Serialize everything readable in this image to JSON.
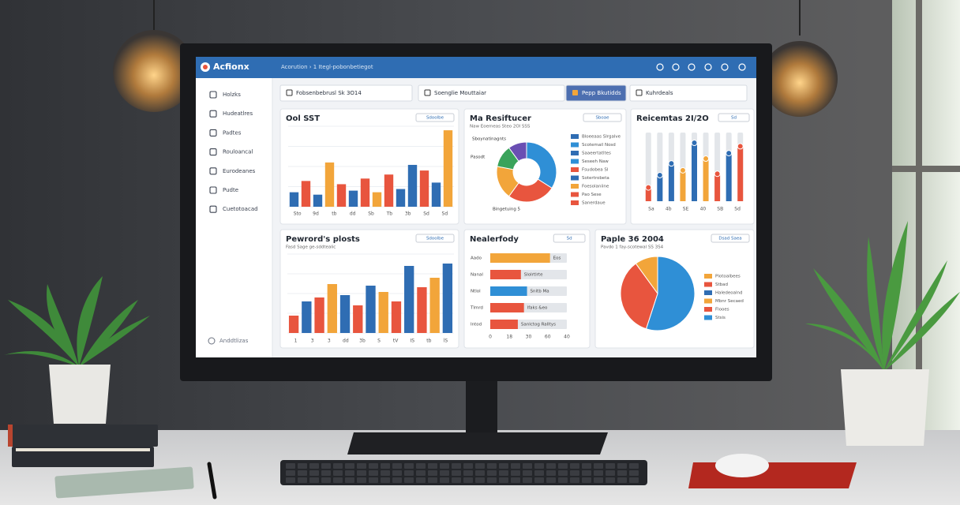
{
  "topbar": {
    "logo": "Acfionx",
    "breadcrumb": "Acorution › 1 Itegl-pobonbetiegot"
  },
  "sidebar": {
    "items": [
      "Holzks",
      "Hudeatlres",
      "Padtes",
      "Rouloancal",
      "Eurodeanes",
      "Pudte",
      "Cuetotoacad"
    ],
    "footer": "Anddtlizas"
  },
  "filters": [
    "Fobsenbebrusl Sk 3O14",
    "Soenglie Mouttaiar",
    "Pepp Bkutidds",
    "Kuhrdeals"
  ],
  "panels": [
    {
      "type": "bar",
      "title": "Ool SST",
      "badge": "Sdoolbe",
      "ylim": [
        0,
        100
      ],
      "values": [
        18,
        32,
        15,
        55,
        28,
        20,
        35,
        18,
        40,
        22,
        52,
        45,
        30,
        95
      ],
      "colors": [
        "#2f6db3",
        "#e8553e",
        "#2f6db3",
        "#f2a53a",
        "#e8553e",
        "#2f6db3",
        "#e8553e",
        "#f2a53a",
        "#e8553e",
        "#2f6db3",
        "#2f6db3",
        "#e8553e",
        "#2f6db3",
        "#f2a53a"
      ],
      "x_labels": [
        "Sto",
        "9d",
        "tb",
        "dd",
        "Sb",
        "Tb",
        "3b",
        "Sd",
        "Sd"
      ]
    },
    {
      "type": "donut",
      "title": "Ma Resiftucer",
      "subtitle": "Naw Eoemeas Steo 2Ol SSS",
      "badge": "Sboae",
      "values": [
        34,
        26,
        18,
        12,
        10
      ],
      "colors": [
        "#2f8fd6",
        "#e8553e",
        "#f2a53a",
        "#3aa35b",
        "#6a4fb3"
      ],
      "legend": [
        "Bloeeaas Slrgalve",
        "Scotemail Nosd",
        "Saaeertatltes",
        "Seseeh Naw",
        "Fsudobea Sl",
        "Sotertrobeta",
        "Foesolaniine",
        "Pao Sese",
        "Sanerdaue"
      ],
      "legend_colors": [
        "#2f6db3",
        "#2f8fd6",
        "#2f6db3",
        "#2f8fd6",
        "#e8553e",
        "#2f6db3",
        "#f2a53a",
        "#e8553e",
        "#e8553e"
      ],
      "callouts": [
        "Sboynatinagnts",
        "Pasodt",
        "Bingetuing 5"
      ]
    },
    {
      "type": "range",
      "title": "Reicemtas 2I/2O",
      "badge": "Sd",
      "ylim": [
        0,
        100
      ],
      "values": [
        20,
        38,
        55,
        45,
        85,
        62,
        40,
        70,
        80
      ],
      "colors": [
        "#e8553e",
        "#2f6db3",
        "#2f6db3",
        "#f2a53a",
        "#2f6db3",
        "#f2a53a",
        "#e8553e",
        "#2f6db3",
        "#e8553e"
      ],
      "x_labels": [
        "Sa",
        "4b",
        "SE",
        "40",
        "SB",
        "Sd"
      ]
    },
    {
      "type": "bar",
      "title": "Pewrord's plosts",
      "subtitle": "Fasd Sage ge-sddtealic",
      "badge": "Sdoolbe",
      "ylim": [
        0,
        100
      ],
      "values": [
        22,
        40,
        45,
        62,
        48,
        35,
        60,
        52,
        40,
        85,
        58,
        70,
        88
      ],
      "colors": [
        "#e8553e",
        "#2f6db3",
        "#e8553e",
        "#f2a53a",
        "#2f6db3",
        "#e8553e",
        "#2f6db3",
        "#f2a53a",
        "#e8553e",
        "#2f6db3",
        "#e8553e",
        "#f2a53a",
        "#2f6db3"
      ],
      "x_labels": [
        "1",
        "3",
        "3",
        "dd",
        "3b",
        "S",
        "tV",
        "IS",
        "tb",
        "lS"
      ]
    },
    {
      "type": "hbar",
      "title": "Nealerfody",
      "badge": "Sd",
      "xlim": [
        0,
        100
      ],
      "categories": [
        "Aado",
        "Nanal",
        "Ntlol",
        "Tlmrd",
        "Intod"
      ],
      "values": [
        78,
        40,
        48,
        44,
        36
      ],
      "colors": [
        "#f2a53a",
        "#e8553e",
        "#2f8fd6",
        "#e8553e",
        "#e8553e"
      ],
      "bar_texts": [
        "Eos",
        "Slolrtlrte",
        "Snitb Ma",
        "lfaks &eo",
        "Sanlctog Ralltys"
      ],
      "x_labels": [
        "0",
        "18",
        "30",
        "60",
        "40"
      ]
    },
    {
      "type": "pie",
      "title": "Paple 36 2004",
      "subtitle": "Pavdo 1 fay-scotewal SS 3S4",
      "badge": "Dsad Saea",
      "values": [
        55,
        35,
        10
      ],
      "colors": [
        "#2f8fd6",
        "#e8553e",
        "#f2a53a"
      ],
      "legend": [
        "Plotoalbees",
        "Stbad",
        "Haledeoalnd",
        "Mbnr Secaed",
        "Flooes",
        "Stsis"
      ],
      "legend_colors": [
        "#f2a53a",
        "#e8553e",
        "#2f6db3",
        "#f2a53a",
        "#e8553e",
        "#2f8fd6"
      ]
    }
  ]
}
